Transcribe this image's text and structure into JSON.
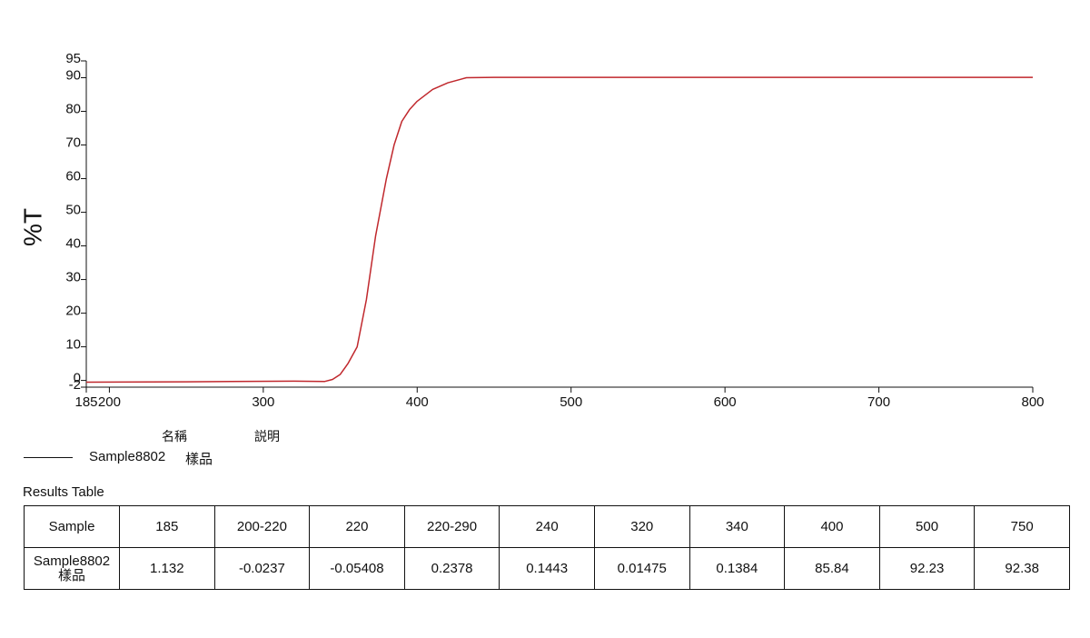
{
  "chart_data": {
    "type": "line",
    "y_label": "%T",
    "x": [
      185,
      250,
      320,
      340,
      345,
      350,
      355,
      361,
      367,
      373,
      380,
      385,
      390,
      395,
      400,
      410,
      420,
      432,
      450,
      600,
      800
    ],
    "series": [
      {
        "name": "Sample8802",
        "color": "#c0282d",
        "values": [
          -0.5,
          -0.4,
          -0.2,
          -0.3,
          0.3,
          1.8,
          5,
          10,
          24,
          43,
          60,
          70,
          77,
          80.5,
          83,
          86.5,
          88.5,
          90,
          90.1,
          90.1,
          90.1
        ]
      }
    ],
    "xlim": [
      185,
      800
    ],
    "xticks": [
      185,
      200,
      300,
      400,
      500,
      600,
      700,
      800
    ],
    "ylim": [
      -2,
      95
    ],
    "yticks": [
      -2,
      0,
      10,
      20,
      30,
      40,
      50,
      60,
      70,
      80,
      90,
      95
    ],
    "grid": false
  },
  "legend": {
    "headers": [
      "名稱",
      "説明"
    ],
    "description": "樣品"
  },
  "results_table": {
    "title": "Results Table",
    "columns": [
      "Sample",
      "185",
      "200-220",
      "220",
      "220-290",
      "240",
      "320",
      "340",
      "400",
      "500",
      "750"
    ],
    "rows": [
      [
        "Sample8802 樣品",
        "1.132",
        "-0.0237",
        "-0.05408",
        "0.2378",
        "0.1443",
        "0.01475",
        "0.1384",
        "85.84",
        "92.23",
        "92.38"
      ]
    ]
  }
}
